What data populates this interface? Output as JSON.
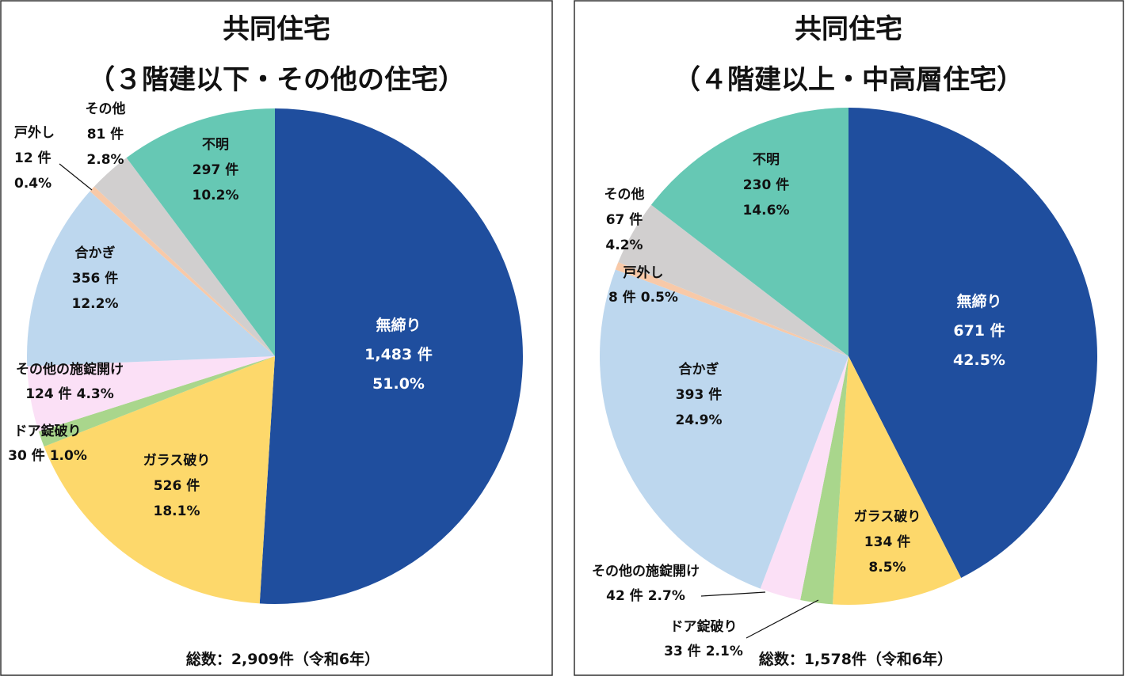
{
  "chart_data": [
    {
      "type": "pie",
      "title": "共同住宅",
      "subtitle": "（３階建以下・その他の住宅）",
      "categories": [
        "無締り",
        "ガラス破り",
        "ドア錠破り",
        "その他の施錠開け",
        "合かぎ",
        "戸外し",
        "その他",
        "不明"
      ],
      "values": [
        1483,
        526,
        30,
        124,
        356,
        12,
        81,
        297
      ],
      "value_labels": [
        "1,483 件",
        "526 件",
        "30 件",
        "124 件",
        "356 件",
        "12 件",
        "81 件",
        "297 件"
      ],
      "percent_labels": [
        "51.0%",
        "18.1%",
        "1.0%",
        "4.3%",
        "12.2%",
        "0.4%",
        "2.8%",
        "10.2%"
      ],
      "colors": [
        "#1f4e9e",
        "#fdd86b",
        "#a9d68c",
        "#fbe0f6",
        "#bdd7ee",
        "#f8c9a8",
        "#d1cfcf",
        "#66c8b4"
      ],
      "note": "総数：2,909件（令和6年）"
    },
    {
      "type": "pie",
      "title": "共同住宅",
      "subtitle": "（４階建以上・中高層住宅）",
      "categories": [
        "無締り",
        "ガラス破り",
        "ドア錠破り",
        "その他の施錠開け",
        "合かぎ",
        "戸外し",
        "その他",
        "不明"
      ],
      "values": [
        671,
        134,
        33,
        42,
        393,
        8,
        67,
        230
      ],
      "value_labels": [
        "671 件",
        "134 件",
        "33 件",
        "42 件",
        "393 件",
        "8 件",
        "67 件",
        "230 件"
      ],
      "percent_labels": [
        "42.5%",
        "8.5%",
        "2.1%",
        "2.7%",
        "24.9%",
        "0.5%",
        "4.2%",
        "14.6%"
      ],
      "colors": [
        "#1f4e9e",
        "#fdd86b",
        "#a9d68c",
        "#fbe0f6",
        "#bdd7ee",
        "#f8c9a8",
        "#d1cfcf",
        "#66c8b4"
      ],
      "note": "総数：1,578件（令和6年）"
    }
  ]
}
